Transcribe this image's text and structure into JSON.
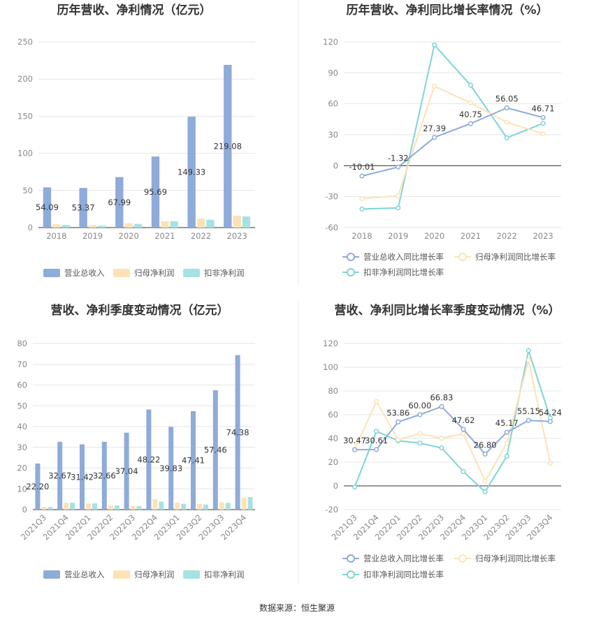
{
  "source_label": "数据来源：恒生聚源",
  "colors": {
    "revenue": "#8eabd9",
    "net_profit": "#fde2b5",
    "deducted_profit": "#a7e2e2",
    "line_revenue": "#8eabd9",
    "line_net": "#fde2b5",
    "line_deducted": "#7fd4d6",
    "grid": "#e6e6e6",
    "axis": "#333333"
  },
  "chart_data": [
    {
      "id": "annual-bar",
      "type": "bar",
      "title": "历年营收、净利情况（亿元）",
      "categories": [
        "2018",
        "2019",
        "2020",
        "2021",
        "2022",
        "2023"
      ],
      "ylim": [
        0,
        250
      ],
      "yticks": [
        0,
        50,
        100,
        150,
        200,
        250
      ],
      "series": [
        {
          "name": "营业总收入",
          "values": [
            54.09,
            53.37,
            67.99,
            95.69,
            149.33,
            219.08
          ],
          "labels": [
            "54.09",
            "53.37",
            "67.99",
            "95.69",
            "149.33",
            "219.08"
          ]
        },
        {
          "name": "归母净利润",
          "values": [
            4.5,
            3.2,
            5.8,
            8.5,
            12.0,
            16.0
          ]
        },
        {
          "name": "扣非净利润",
          "values": [
            3.5,
            2.5,
            5.0,
            8.5,
            10.5,
            15.0
          ]
        }
      ],
      "legend": "bottom",
      "grid": true
    },
    {
      "id": "annual-line",
      "type": "line",
      "title": "历年营收、净利同比增长率情况（%）",
      "categories": [
        "2018",
        "2019",
        "2020",
        "2021",
        "2022",
        "2023"
      ],
      "ylim": [
        -60,
        120
      ],
      "yticks": [
        -60,
        -30,
        0,
        30,
        60,
        90,
        120
      ],
      "series": [
        {
          "name": "营业总收入同比增长率",
          "values": [
            -10.01,
            -1.32,
            27.39,
            40.75,
            56.05,
            46.71
          ],
          "labels": [
            "-10.01",
            "-1.32",
            "27.39",
            "40.75",
            "56.05",
            "46.71"
          ]
        },
        {
          "name": "归母净利润同比增长率",
          "values": [
            -32,
            -29,
            77,
            61,
            42,
            31
          ]
        },
        {
          "name": "扣非净利润同比增长率",
          "values": [
            -42,
            -41,
            117,
            78,
            27,
            41
          ]
        }
      ],
      "legend": "bottom",
      "grid": true
    },
    {
      "id": "quarter-bar",
      "type": "bar",
      "title": "营收、净利季度变动情况（亿元）",
      "categories": [
        "2021Q3",
        "2021Q4",
        "2022Q1",
        "2022Q2",
        "2022Q3",
        "2022Q4",
        "2023Q1",
        "2023Q2",
        "2023Q3",
        "2023Q4"
      ],
      "ylim": [
        0,
        80
      ],
      "yticks": [
        0,
        10,
        20,
        30,
        40,
        50,
        60,
        70,
        80
      ],
      "series": [
        {
          "name": "营业总收入",
          "values": [
            22.2,
            32.67,
            31.42,
            32.66,
            37.04,
            48.22,
            39.83,
            47.41,
            57.46,
            74.38
          ],
          "labels": [
            "22.20",
            "32.67",
            "31.42",
            "32.66",
            "37.04",
            "48.22",
            "39.83",
            "47.41",
            "57.46",
            "74.38"
          ]
        },
        {
          "name": "归母净利润",
          "values": [
            1.4,
            3.3,
            3.0,
            2.1,
            1.7,
            5.0,
            3.3,
            2.7,
            3.5,
            5.7
          ]
        },
        {
          "name": "扣非净利润",
          "values": [
            1.2,
            3.3,
            3.0,
            2.0,
            1.6,
            3.8,
            2.8,
            2.4,
            3.2,
            6.0
          ]
        }
      ],
      "legend": "bottom",
      "grid": true
    },
    {
      "id": "quarter-line",
      "type": "line",
      "title": "营收、净利同比增长率季度变动情况（%）",
      "categories": [
        "2021Q3",
        "2021Q4",
        "2022Q1",
        "2022Q2",
        "2022Q3",
        "2022Q4",
        "2023Q1",
        "2023Q2",
        "2023Q3",
        "2023Q4"
      ],
      "ylim": [
        -20,
        120
      ],
      "yticks": [
        -20,
        0,
        20,
        40,
        60,
        80,
        100,
        120
      ],
      "series": [
        {
          "name": "营业总收入同比增长率",
          "values": [
            30.47,
            30.61,
            53.86,
            60.0,
            66.83,
            47.62,
            26.8,
            45.17,
            55.15,
            54.24
          ],
          "labels": [
            "30.47",
            "30.61",
            "53.86",
            "60.00",
            "66.83",
            "47.62",
            "26.80",
            "45.17",
            "55.15",
            "54.24"
          ]
        },
        {
          "name": "归母净利润同比增长率",
          "values": [
            31,
            71,
            39,
            44,
            40,
            44,
            4,
            36,
            106,
            19
          ]
        },
        {
          "name": "扣非净利润同比增长率",
          "values": [
            -1,
            46,
            38,
            36,
            32,
            12,
            -5,
            25,
            114,
            57
          ]
        }
      ],
      "legend": "bottom",
      "grid": true
    }
  ]
}
